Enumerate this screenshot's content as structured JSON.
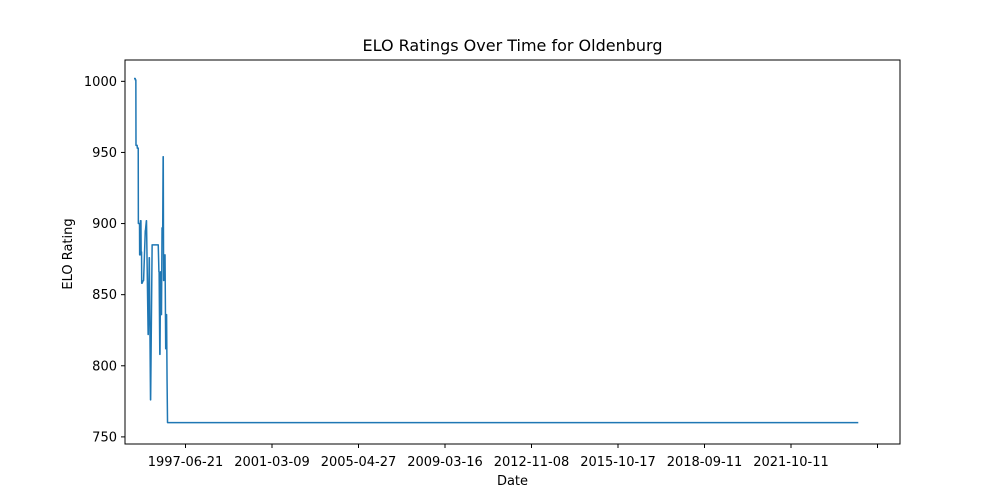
{
  "chart_data": {
    "type": "line",
    "title": "ELO Ratings Over Time for Oldenburg",
    "xlabel": "Date",
    "ylabel": "ELO Rating",
    "xlim": [
      "1995-10-10",
      "2027-01-20"
    ],
    "ylim": [
      745,
      1015
    ],
    "grid": false,
    "legend": "none",
    "x_ticks": [
      "1997-06-21",
      "2001-03-09",
      "2005-04-27",
      "2009-03-16",
      "2012-11-08",
      "2015-10-17",
      "2018-09-11",
      "2021-10-11",
      ""
    ],
    "y_ticks": [
      750,
      800,
      850,
      900,
      950,
      1000
    ],
    "series": [
      {
        "color": "#1f77b4",
        "x": [
          "1996-02-20",
          "1996-03-08",
          "1996-03-10",
          "1996-03-18",
          "1996-03-20",
          "1996-04-06",
          "1996-04-08",
          "1996-04-22",
          "1996-04-24",
          "1996-05-11",
          "1996-05-13",
          "1996-05-22",
          "1996-05-25",
          "1996-06-01",
          "1996-06-04",
          "1996-06-10",
          "1996-06-12",
          "1996-06-17",
          "1996-07-06",
          "1996-07-10",
          "1996-08-04",
          "1996-08-06",
          "1996-08-20",
          "1996-08-22",
          "1996-09-15",
          "1996-09-17",
          "1996-10-01",
          "1996-10-03",
          "1996-10-20",
          "1996-10-22",
          "1996-11-13",
          "1996-11-16",
          "1996-12-02",
          "1996-12-05",
          "1996-12-25",
          "1996-12-27",
          "1997-01-09",
          "1997-01-11",
          "1997-01-25",
          "1997-01-27",
          "1997-02-09",
          "1997-02-11",
          "1997-02-21",
          "1997-02-24",
          "1997-03-06",
          "1997-03-09",
          "1997-03-17",
          "1997-03-19",
          "1997-03-28",
          "1997-03-31",
          "1997-04-08",
          "1997-04-10",
          "1997-04-15",
          "1997-04-18",
          "1997-04-24",
          "1997-04-26",
          "1997-05-01",
          "1997-05-04",
          "1997-05-09",
          "1997-05-11",
          "1997-05-20",
          "1997-05-22",
          "1997-06-01",
          "1997-06-04",
          "1997-06-12",
          "1997-06-14",
          "1997-06-21",
          "1997-06-28",
          "1997-07-02",
          "2025-05-15"
        ],
        "values": [
          1002,
          1002,
          1001,
          1001,
          955,
          955,
          953,
          953,
          900,
          900,
          878,
          878,
          902,
          902,
          880,
          880,
          858,
          858,
          860,
          860,
          895,
          895,
          902,
          902,
          822,
          822,
          876,
          876,
          776,
          776,
          885,
          885,
          885,
          885,
          885,
          885,
          885,
          885,
          885,
          885,
          885,
          885,
          866,
          866,
          808,
          808,
          866,
          866,
          836,
          836,
          897,
          897,
          897,
          897,
          947,
          947,
          860,
          860,
          866,
          866,
          878,
          878,
          812,
          812,
          836,
          836,
          790,
          760,
          760,
          760
        ]
      }
    ]
  }
}
